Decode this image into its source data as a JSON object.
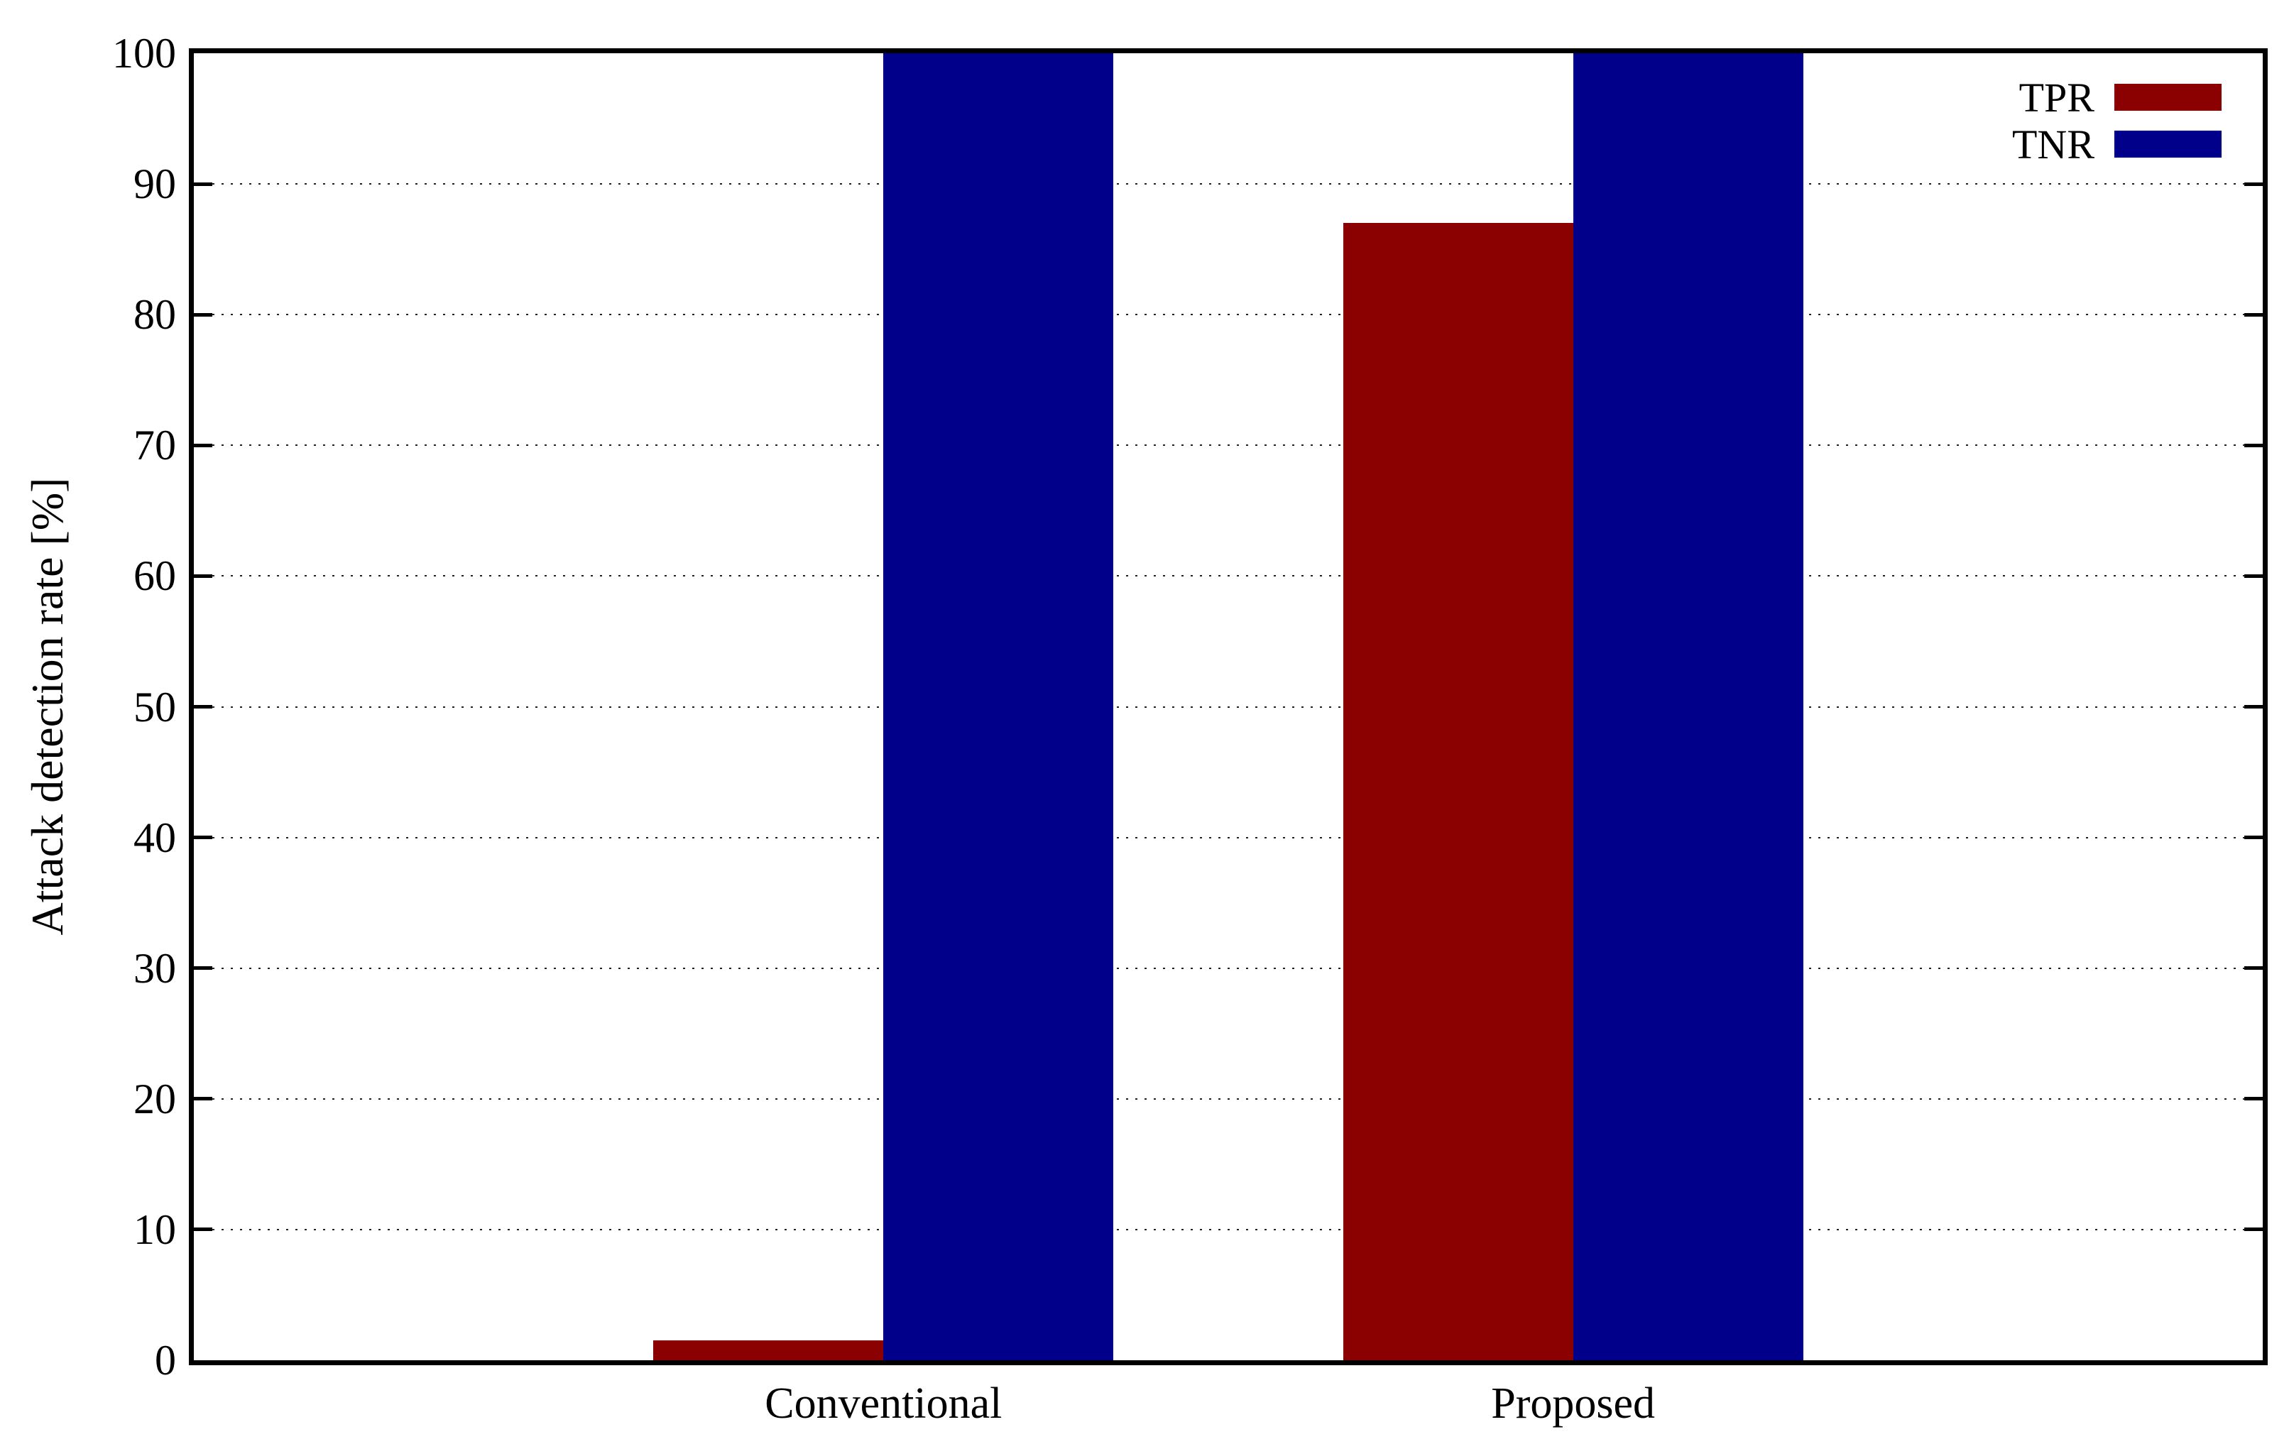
{
  "figure": {
    "background": "#ffffff"
  },
  "chart_data": {
    "type": "bar",
    "title": "",
    "xlabel": "",
    "ylabel": "Attack detection rate [%]",
    "categories": [
      "Conventional",
      "Proposed"
    ],
    "series": [
      {
        "name": "TPR",
        "color": "#8b0000",
        "values": [
          1.5,
          87
        ]
      },
      {
        "name": "TNR",
        "color": "#00008b",
        "values": [
          100,
          100
        ]
      }
    ],
    "ylim": [
      0,
      100
    ],
    "yticks": [
      0,
      10,
      20,
      30,
      40,
      50,
      60,
      70,
      80,
      90,
      100
    ],
    "grid": "horizontal-dotted",
    "axis_color": "#000000",
    "legend": {
      "position": "top-right",
      "entries": [
        "TPR",
        "TNR"
      ]
    }
  }
}
